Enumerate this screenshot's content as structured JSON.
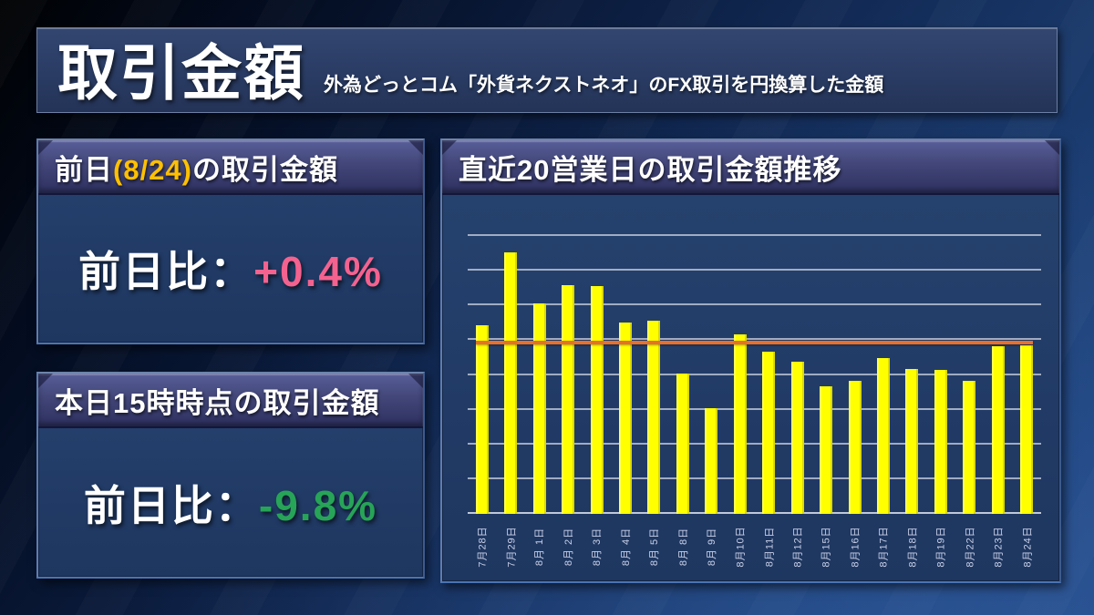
{
  "header": {
    "title": "取引金額",
    "subtitle": "外為どっとコム「外貨ネクストネオ」のFX取引を円換算した金額"
  },
  "panel_previous_day": {
    "title_prefix": "前日",
    "title_date": "(8/24)",
    "title_suffix": "の取引金額",
    "compare_label": "前日比：",
    "compare_value": "+0.4%"
  },
  "panel_today": {
    "title": "本日15時時点の取引金額",
    "compare_label": "前日比：",
    "compare_value": "-9.8%"
  },
  "chart_panel": {
    "title": "直近20営業日の取引金額推移"
  },
  "colors": {
    "positive_value": "#f4628f",
    "negative_value": "#27a457",
    "date_highlight": "#ffc000",
    "bar": "#ffff00",
    "average_line": "#e8702a",
    "gridline": "#c5ccdc"
  },
  "chart_data": {
    "type": "bar",
    "title": "直近20営業日の取引金額推移",
    "categories": [
      "7月28日",
      "7月29日",
      "8月 1日",
      "8月 2日",
      "8月 3日",
      "8月 4日",
      "8月 5日",
      "8月 8日",
      "8月 9日",
      "8月10日",
      "8月11日",
      "8月12日",
      "8月15日",
      "8月16日",
      "8月17日",
      "8月18日",
      "8月19日",
      "8月22日",
      "8月23日",
      "8月24日"
    ],
    "values": [
      5.43,
      7.52,
      6.06,
      6.59,
      6.56,
      5.5,
      5.56,
      4.05,
      3.04,
      5.16,
      4.68,
      4.39,
      3.67,
      3.84,
      4.49,
      4.16,
      4.14,
      3.83,
      4.83,
      4.85
    ],
    "average_line": 4.92,
    "ylim": [
      0,
      8
    ],
    "gridline_step": 1,
    "y_axis_labels": "none",
    "legend": "none",
    "grid": true,
    "x_tick_rotation": -90,
    "bar_color": "#ffff00",
    "average_line_color": "#e8702a",
    "value_unit": "relative (1 gridline interval = 1)"
  }
}
